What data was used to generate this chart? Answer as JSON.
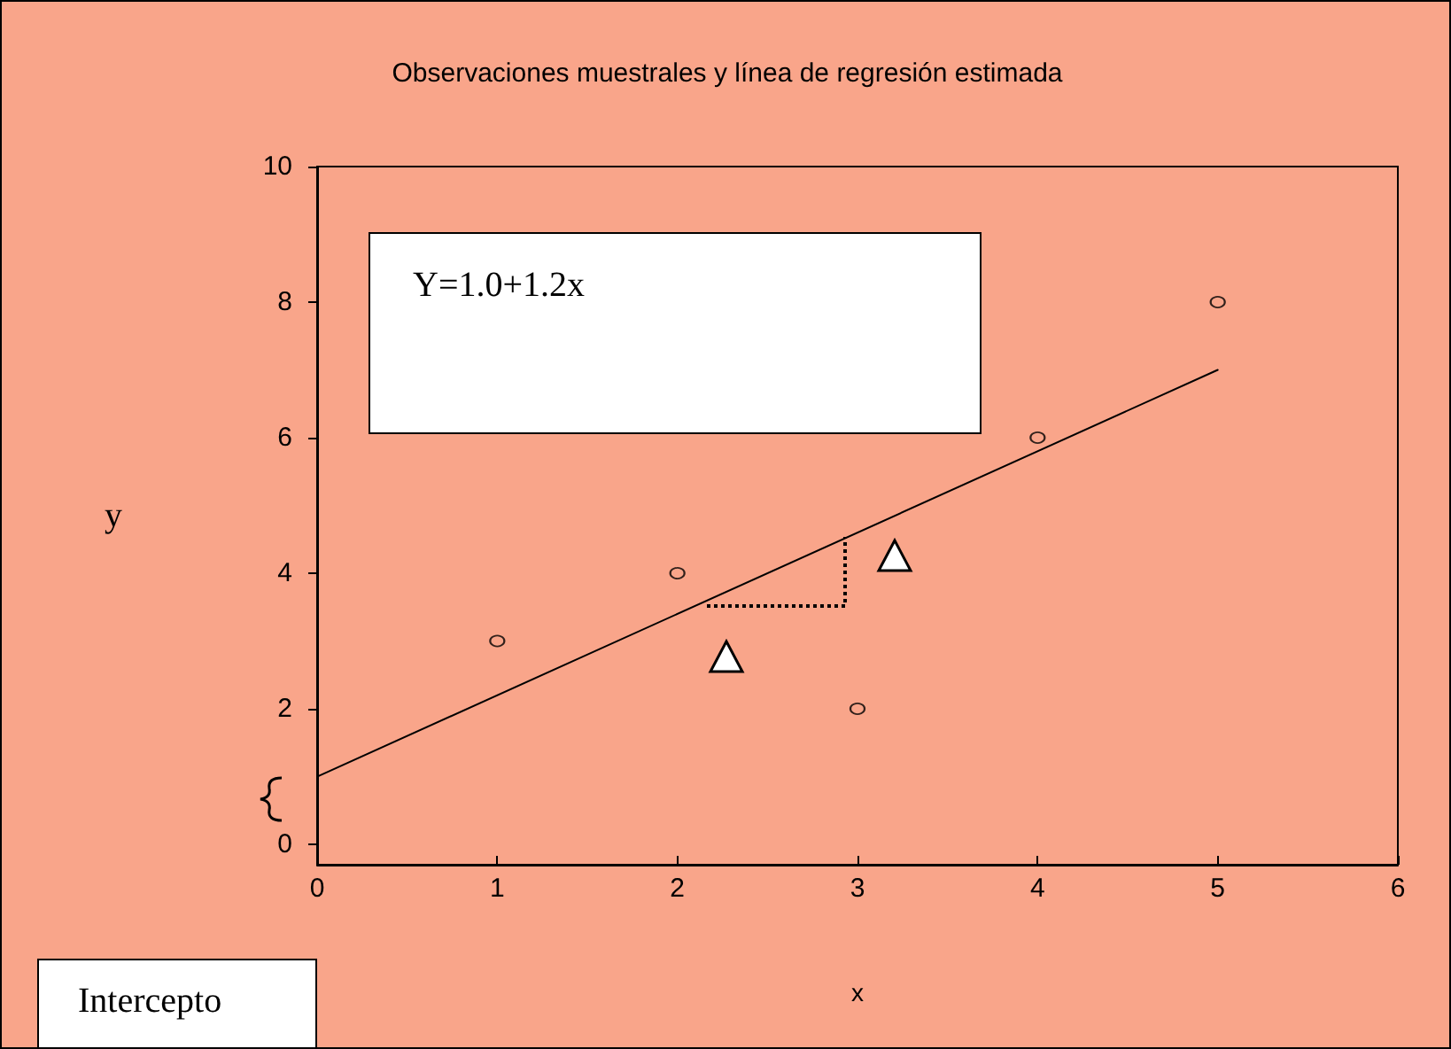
{
  "chart_data": {
    "type": "scatter",
    "title": "Observaciones muestrales y línea de regresión estimada",
    "xlabel": "x",
    "ylabel": "y",
    "annotations": [
      "Y=1.0+1.2x",
      "Intercepto"
    ],
    "x": [
      1,
      2,
      3,
      4,
      5
    ],
    "xlim": [
      0,
      6
    ],
    "xticks": [
      0,
      1,
      2,
      3,
      4,
      5,
      6
    ],
    "ylim": [
      -0.3,
      10
    ],
    "yticks": [
      0,
      2,
      4,
      6,
      8,
      10
    ],
    "grid": false,
    "marker": "circle",
    "series": [
      {
        "type": "scatter",
        "color": "#000000",
        "values": [
          3,
          4,
          2,
          6,
          8
        ]
      },
      {
        "type": "line",
        "x": [
          0,
          5
        ],
        "values": [
          1,
          7
        ],
        "color": "#000000",
        "line_style": "solid",
        "marker": "none"
      }
    ]
  }
}
